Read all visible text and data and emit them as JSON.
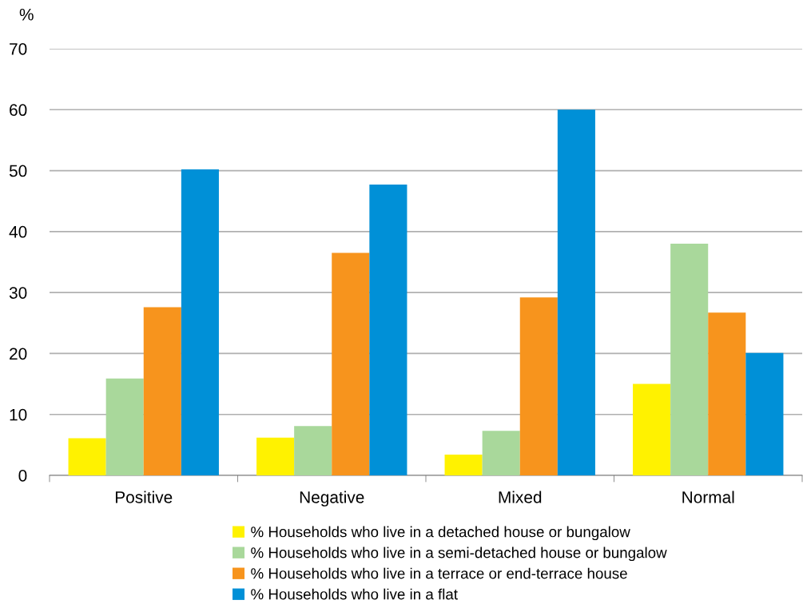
{
  "chart_data": {
    "type": "bar",
    "ylabel": "%",
    "categories": [
      "Positive",
      "Negative",
      "Mixed",
      "Normal"
    ],
    "series": [
      {
        "name": "% Households who live in a detached house or bungalow",
        "color": "#fff200",
        "values": [
          6.1,
          6.2,
          3.4,
          15.0
        ]
      },
      {
        "name": "% Households who live in a semi-detached house or bungalow",
        "color": "#a9d89b",
        "values": [
          15.9,
          8.1,
          7.3,
          38.0
        ]
      },
      {
        "name": "% Households who live in a terrace or end-terrace house",
        "color": "#f7941d",
        "values": [
          27.6,
          36.5,
          29.2,
          26.7
        ]
      },
      {
        "name": "% Households who live in a flat",
        "color": "#0090d7",
        "values": [
          50.2,
          47.7,
          60.0,
          20.1
        ]
      }
    ],
    "ylim": [
      0,
      70
    ],
    "yticks": [
      0,
      10,
      20,
      30,
      40,
      50,
      60,
      70
    ],
    "grid": "y",
    "legend": "bottom"
  }
}
